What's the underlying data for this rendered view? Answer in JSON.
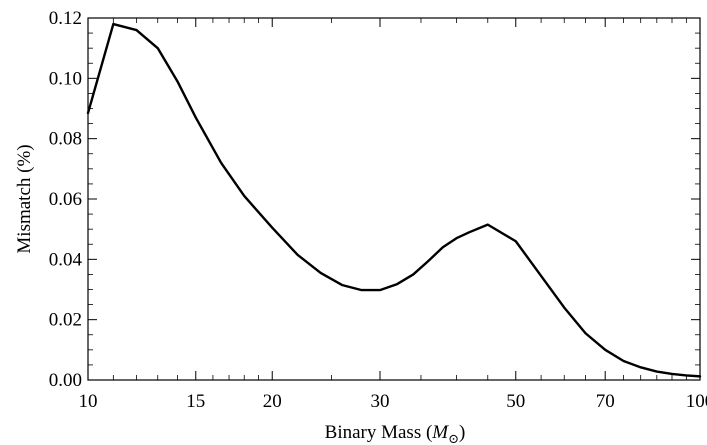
{
  "chart_data": {
    "type": "line",
    "xlabel": "Binary Mass (",
    "xlabel_symbol": "M",
    "xlabel_subscript": "⊙",
    "xlabel_suffix": ")",
    "ylabel": "Mismatch (%)",
    "xscale": "log",
    "xlim": [
      10,
      100
    ],
    "ylim": [
      0,
      0.12
    ],
    "grid": false,
    "x_ticks": [
      10,
      15,
      20,
      30,
      50,
      70,
      100
    ],
    "x_tick_labels": [
      "10",
      "15",
      "20",
      "30",
      "50",
      "70",
      "100"
    ],
    "y_ticks": [
      0,
      0.02,
      0.04,
      0.06,
      0.08,
      0.1,
      0.12
    ],
    "y_tick_labels": [
      "0.00",
      "0.02",
      "0.04",
      "0.06",
      "0.08",
      "0.10",
      "0.12"
    ],
    "series": [
      {
        "color": "#000000",
        "x": [
          10,
          11,
          12,
          13,
          14,
          15,
          16.5,
          18,
          20,
          22,
          24,
          26,
          28,
          30,
          32,
          34,
          36,
          38,
          40,
          42,
          45,
          50,
          55,
          60,
          65,
          70,
          75,
          80,
          85,
          90,
          95,
          100
        ],
        "y": [
          0.0885,
          0.118,
          0.116,
          0.11,
          0.099,
          0.087,
          0.072,
          0.061,
          0.0505,
          0.0415,
          0.0355,
          0.0315,
          0.0298,
          0.0298,
          0.0318,
          0.035,
          0.0395,
          0.044,
          0.047,
          0.049,
          0.0515,
          0.046,
          0.0345,
          0.024,
          0.0155,
          0.01,
          0.0063,
          0.0042,
          0.0028,
          0.002,
          0.0015,
          0.0012
        ]
      }
    ]
  }
}
